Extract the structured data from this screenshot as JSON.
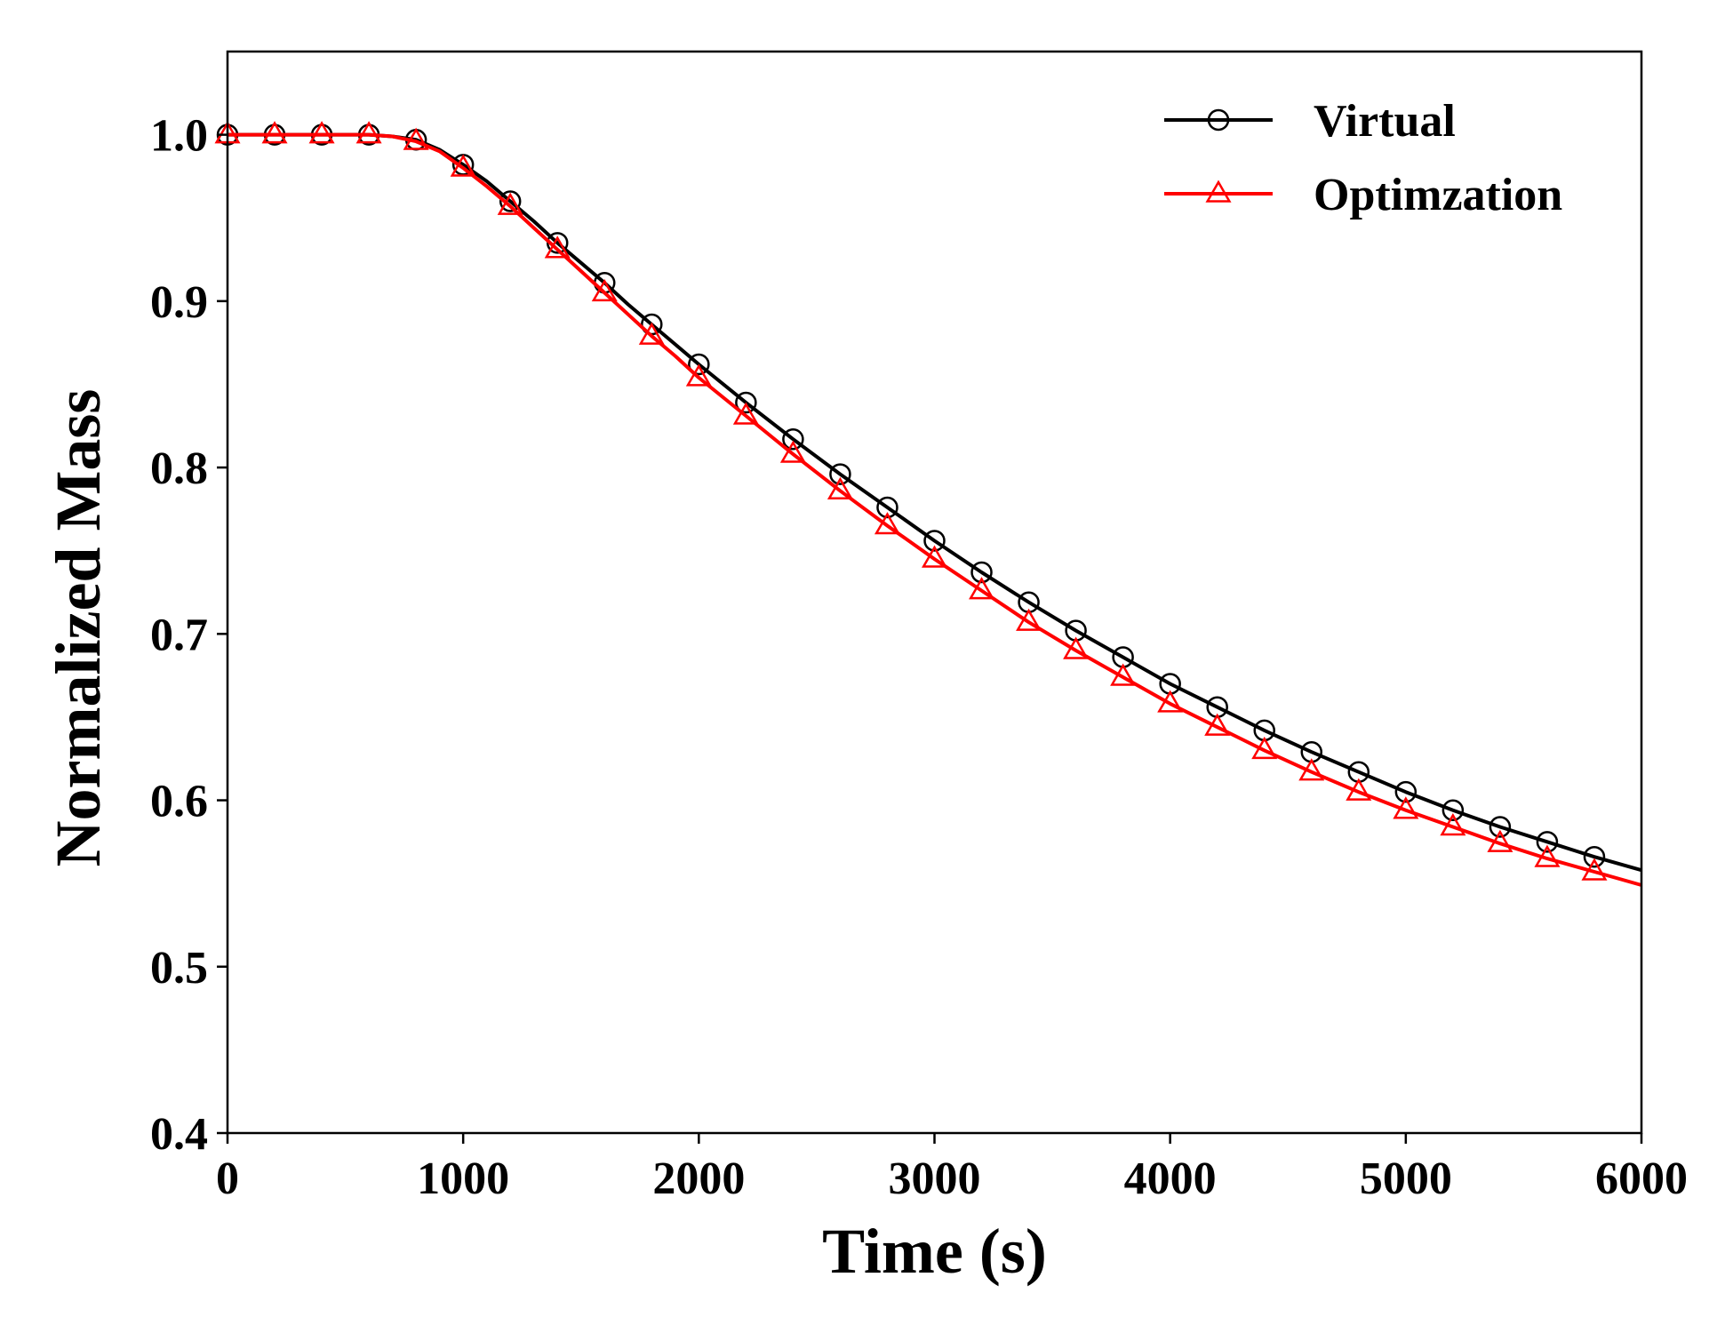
{
  "chart_data": {
    "type": "line",
    "title": "",
    "xlabel": "Time (s)",
    "ylabel": "Normalized Mass",
    "xlim": [
      0,
      6000
    ],
    "ylim": [
      0.4,
      1.05
    ],
    "xticks": [
      "0",
      "1000",
      "2000",
      "3000",
      "4000",
      "5000",
      "6000"
    ],
    "xtick_values": [
      0,
      1000,
      2000,
      3000,
      4000,
      5000,
      6000
    ],
    "yticks": [
      "0.4",
      "0.5",
      "0.6",
      "0.7",
      "0.8",
      "0.9",
      "1.0"
    ],
    "ytick_values": [
      0.4,
      0.5,
      0.6,
      0.7,
      0.8,
      0.9,
      1.0
    ],
    "grid": false,
    "legend_position": "top-right",
    "series": [
      {
        "name": "Virtual",
        "color": "#000000",
        "marker": "circle",
        "line_x": [
          0,
          200,
          400,
          600,
          700,
          800,
          900,
          1000,
          1100,
          1200,
          1300,
          1400,
          1500,
          1600,
          1700,
          1800,
          1900,
          2000,
          2200,
          2400,
          2600,
          2800,
          3000,
          3200,
          3400,
          3600,
          3800,
          4000,
          4200,
          4400,
          4600,
          4800,
          5000,
          5200,
          5400,
          5600,
          5800,
          6000
        ],
        "line_y": [
          1.0,
          1.0,
          1.0,
          1.0,
          0.999,
          0.997,
          0.991,
          0.982,
          0.972,
          0.96,
          0.948,
          0.935,
          0.923,
          0.911,
          0.898,
          0.886,
          0.874,
          0.862,
          0.839,
          0.817,
          0.796,
          0.776,
          0.756,
          0.737,
          0.719,
          0.702,
          0.686,
          0.67,
          0.656,
          0.642,
          0.629,
          0.617,
          0.605,
          0.594,
          0.584,
          0.575,
          0.566,
          0.558
        ],
        "marker_x": [
          0,
          200,
          400,
          600,
          800,
          1000,
          1200,
          1400,
          1600,
          1800,
          2000,
          2200,
          2400,
          2600,
          2800,
          3000,
          3200,
          3400,
          3600,
          3800,
          4000,
          4200,
          4400,
          4600,
          4800,
          5000,
          5200,
          5400,
          5600,
          5800
        ],
        "marker_y": [
          1.0,
          1.0,
          1.0,
          1.0,
          0.997,
          0.982,
          0.96,
          0.935,
          0.911,
          0.886,
          0.862,
          0.839,
          0.817,
          0.796,
          0.776,
          0.756,
          0.737,
          0.719,
          0.702,
          0.686,
          0.67,
          0.656,
          0.642,
          0.629,
          0.617,
          0.605,
          0.594,
          0.584,
          0.575,
          0.566
        ]
      },
      {
        "name": "Optimzation",
        "color": "#ff0000",
        "marker": "triangle",
        "line_x": [
          0,
          200,
          400,
          600,
          700,
          800,
          900,
          1000,
          1100,
          1200,
          1300,
          1400,
          1500,
          1600,
          1700,
          1800,
          1900,
          2000,
          2200,
          2400,
          2600,
          2800,
          3000,
          3200,
          3400,
          3600,
          3800,
          4000,
          4200,
          4400,
          4600,
          4800,
          5000,
          5200,
          5400,
          5600,
          5800,
          6000
        ],
        "line_y": [
          1.0,
          1.0,
          1.0,
          1.0,
          0.999,
          0.996,
          0.99,
          0.98,
          0.969,
          0.957,
          0.944,
          0.931,
          0.918,
          0.905,
          0.892,
          0.879,
          0.867,
          0.854,
          0.831,
          0.808,
          0.786,
          0.765,
          0.745,
          0.726,
          0.707,
          0.69,
          0.674,
          0.658,
          0.644,
          0.63,
          0.617,
          0.605,
          0.594,
          0.584,
          0.574,
          0.565,
          0.557,
          0.549
        ],
        "marker_x": [
          0,
          200,
          400,
          600,
          800,
          1000,
          1200,
          1400,
          1600,
          1800,
          2000,
          2200,
          2400,
          2600,
          2800,
          3000,
          3200,
          3400,
          3600,
          3800,
          4000,
          4200,
          4400,
          4600,
          4800,
          5000,
          5200,
          5400,
          5600,
          5800
        ],
        "marker_y": [
          1.0,
          1.0,
          1.0,
          1.0,
          0.996,
          0.98,
          0.957,
          0.931,
          0.905,
          0.879,
          0.854,
          0.831,
          0.808,
          0.786,
          0.765,
          0.745,
          0.726,
          0.707,
          0.69,
          0.674,
          0.658,
          0.644,
          0.63,
          0.617,
          0.605,
          0.594,
          0.584,
          0.574,
          0.565,
          0.557
        ]
      }
    ]
  }
}
